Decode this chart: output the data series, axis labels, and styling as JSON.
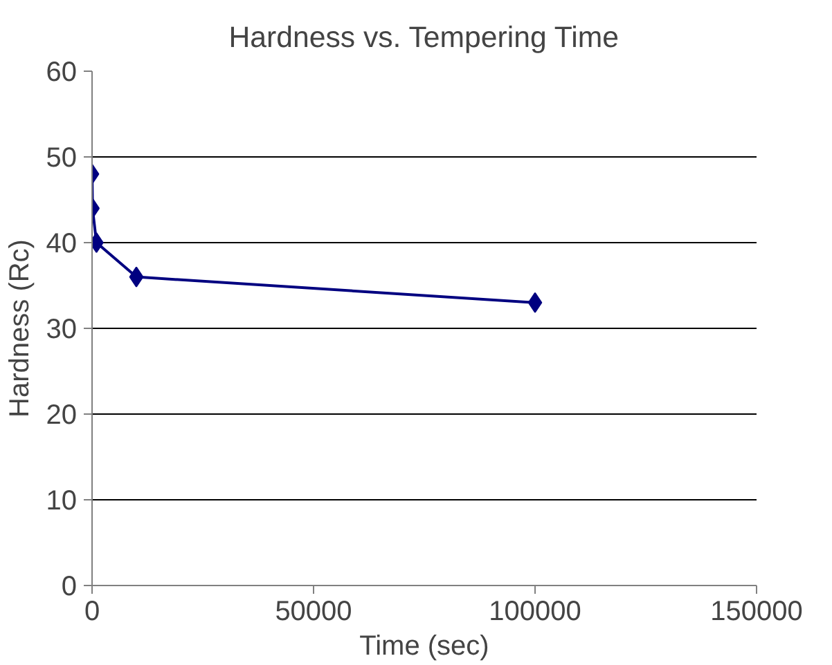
{
  "chart_data": {
    "type": "line",
    "title": "Hardness vs. Tempering Time",
    "xlabel": "Time (sec)",
    "ylabel": "Hardness (Rc)",
    "x": [
      10,
      100,
      1000,
      10000,
      100000
    ],
    "series": [
      {
        "color": "#000080",
        "values": [
          48,
          44,
          40,
          36,
          33
        ]
      }
    ],
    "xlim": [
      0,
      150000
    ],
    "xticks": [
      0,
      50000,
      100000,
      150000
    ],
    "ylim": [
      0,
      60
    ],
    "yticks": [
      0,
      10,
      20,
      30,
      40,
      50,
      60
    ],
    "grid": "y",
    "marker": "diamond",
    "line_style": "solid"
  }
}
